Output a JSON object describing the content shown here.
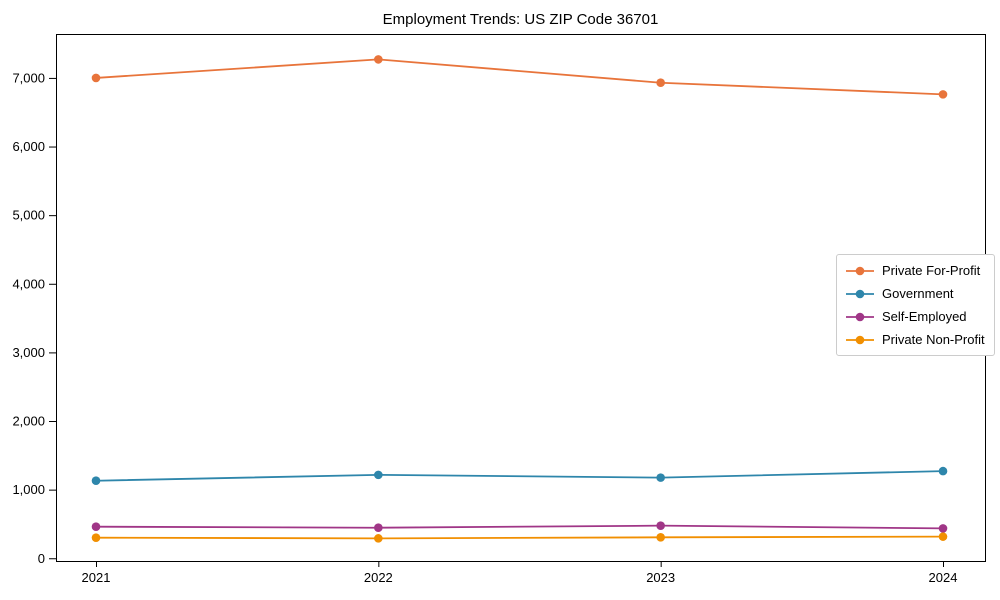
{
  "chart_data": {
    "type": "line",
    "title": "Employment Trends: US ZIP Code 36701",
    "xlabel": "",
    "ylabel": "",
    "categories": [
      "2021",
      "2022",
      "2023",
      "2024"
    ],
    "series": [
      {
        "name": "Private For-Profit",
        "color": "#e8743b",
        "values": [
          7000,
          7270,
          6930,
          6760
        ]
      },
      {
        "name": "Government",
        "color": "#2e86ab",
        "values": [
          1130,
          1215,
          1175,
          1270
        ]
      },
      {
        "name": "Self-Employed",
        "color": "#a03687",
        "values": [
          460,
          445,
          475,
          435
        ]
      },
      {
        "name": "Private Non-Profit",
        "color": "#f18f01",
        "values": [
          300,
          290,
          305,
          315
        ]
      }
    ],
    "ylim": [
      -40,
      7640
    ],
    "yticks": [
      0,
      1000,
      2000,
      3000,
      4000,
      5000,
      6000,
      7000
    ],
    "ytick_labels": [
      "0",
      "1,000",
      "2,000",
      "3,000",
      "4,000",
      "5,000",
      "6,000",
      "7,000"
    ],
    "grid": false,
    "marker": "circle",
    "legend_position": "center-right",
    "axis_color": "#000000",
    "background_color": "#ffffff"
  }
}
